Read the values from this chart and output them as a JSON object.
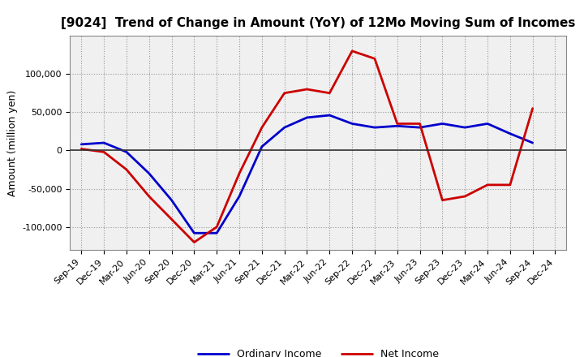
{
  "title": "[9024]  Trend of Change in Amount (YoY) of 12Mo Moving Sum of Incomes",
  "ylabel": "Amount (million yen)",
  "x_labels": [
    "Sep-19",
    "Dec-19",
    "Mar-20",
    "Jun-20",
    "Sep-20",
    "Dec-20",
    "Mar-21",
    "Jun-21",
    "Sep-21",
    "Dec-21",
    "Mar-22",
    "Jun-22",
    "Sep-22",
    "Dec-22",
    "Mar-23",
    "Jun-23",
    "Sep-23",
    "Dec-23",
    "Mar-24",
    "Jun-24",
    "Sep-24",
    "Dec-24"
  ],
  "ordinary_income": [
    8000,
    10000,
    -2000,
    -30000,
    -65000,
    -108000,
    -108000,
    -60000,
    5000,
    30000,
    43000,
    46000,
    35000,
    30000,
    32000,
    30000,
    35000,
    30000,
    35000,
    22000,
    10000,
    null
  ],
  "net_income": [
    2000,
    -2000,
    -25000,
    -60000,
    -90000,
    -120000,
    -100000,
    -30000,
    30000,
    75000,
    80000,
    75000,
    130000,
    120000,
    35000,
    35000,
    -65000,
    -60000,
    -45000,
    -45000,
    55000,
    null
  ],
  "ordinary_color": "#0000cc",
  "net_color": "#cc0000",
  "ylim": [
    -130000,
    150000
  ],
  "yticks": [
    -100000,
    -50000,
    0,
    50000,
    100000
  ],
  "background_color": "#ffffff",
  "plot_bg_color": "#f0f0f0",
  "grid_color": "#999999",
  "line_width": 2.0,
  "title_fontsize": 11,
  "label_fontsize": 9,
  "tick_fontsize": 8,
  "legend_fontsize": 9
}
